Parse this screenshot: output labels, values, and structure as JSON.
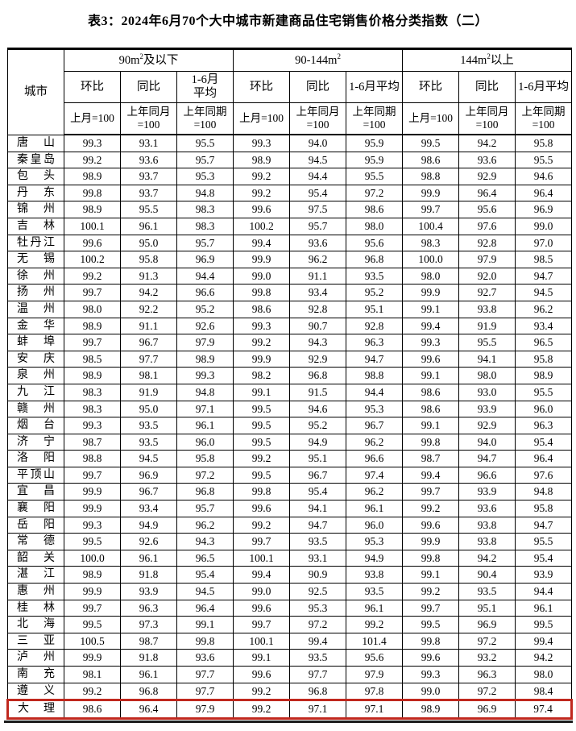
{
  "title": "表3：2024年6月70个大中城市新建商品住宅销售价格分类指数（二）",
  "colors": {
    "highlight_border": "#c0281e",
    "table_border": "#000000",
    "text": "#000000"
  },
  "table": {
    "city_label": "城市",
    "groups": [
      {
        "pre": "90m",
        "sup": "2",
        "post": "及以下",
        "cols": [
          "环比",
          "同比",
          "1-6月\n平均"
        ],
        "bases": [
          "上月=100",
          "上年同月\n=100",
          "上年同期\n=100"
        ]
      },
      {
        "pre": "90-144m",
        "sup": "2",
        "post": "",
        "cols": [
          "环比",
          "同比",
          "1-6月平均"
        ],
        "bases": [
          "上月=100",
          "上年同月\n=100",
          "上年同期\n=100"
        ]
      },
      {
        "pre": "144m",
        "sup": "2",
        "post": "以上",
        "cols": [
          "环比",
          "同比",
          "1-6月平均"
        ],
        "bases": [
          "上月=100",
          "上年同月\n=100",
          "上年同期\n=100"
        ]
      }
    ],
    "rows": [
      {
        "city": "唐山",
        "v": [
          "99.3",
          "93.1",
          "95.5",
          "99.3",
          "94.0",
          "95.9",
          "99.5",
          "94.2",
          "95.8"
        ]
      },
      {
        "city": "秦皇岛",
        "v": [
          "99.2",
          "93.6",
          "95.7",
          "98.9",
          "94.5",
          "95.9",
          "98.6",
          "93.6",
          "95.5"
        ]
      },
      {
        "city": "包头",
        "v": [
          "98.9",
          "93.7",
          "95.3",
          "99.2",
          "94.4",
          "95.5",
          "98.8",
          "92.9",
          "94.6"
        ]
      },
      {
        "city": "丹东",
        "v": [
          "99.8",
          "93.7",
          "94.8",
          "99.2",
          "95.4",
          "97.2",
          "99.9",
          "96.4",
          "96.4"
        ]
      },
      {
        "city": "锦州",
        "v": [
          "98.9",
          "95.5",
          "98.3",
          "99.6",
          "97.5",
          "98.6",
          "99.7",
          "95.6",
          "96.9"
        ]
      },
      {
        "city": "吉林",
        "v": [
          "100.1",
          "96.1",
          "98.3",
          "100.2",
          "95.7",
          "98.0",
          "100.4",
          "97.6",
          "99.0"
        ]
      },
      {
        "city": "牡丹江",
        "v": [
          "99.6",
          "95.0",
          "95.7",
          "99.4",
          "93.6",
          "95.6",
          "98.3",
          "92.8",
          "97.0"
        ]
      },
      {
        "city": "无锡",
        "v": [
          "100.2",
          "95.8",
          "96.9",
          "99.9",
          "96.2",
          "96.8",
          "100.0",
          "97.9",
          "98.5"
        ]
      },
      {
        "city": "徐州",
        "v": [
          "99.2",
          "91.3",
          "94.4",
          "99.0",
          "91.1",
          "93.5",
          "98.0",
          "92.0",
          "94.7"
        ]
      },
      {
        "city": "扬州",
        "v": [
          "99.7",
          "94.2",
          "96.6",
          "99.8",
          "93.4",
          "95.2",
          "99.9",
          "92.7",
          "94.5"
        ]
      },
      {
        "city": "温州",
        "v": [
          "98.0",
          "92.2",
          "95.2",
          "98.6",
          "92.8",
          "95.1",
          "99.1",
          "93.8",
          "96.2"
        ]
      },
      {
        "city": "金华",
        "v": [
          "98.9",
          "91.1",
          "92.6",
          "99.3",
          "90.7",
          "92.8",
          "99.4",
          "91.9",
          "93.4"
        ]
      },
      {
        "city": "蚌埠",
        "v": [
          "99.7",
          "96.7",
          "97.9",
          "99.2",
          "94.3",
          "96.3",
          "99.3",
          "95.5",
          "96.5"
        ]
      },
      {
        "city": "安庆",
        "v": [
          "98.5",
          "97.7",
          "98.9",
          "99.9",
          "92.9",
          "94.7",
          "99.6",
          "94.1",
          "95.8"
        ]
      },
      {
        "city": "泉州",
        "v": [
          "98.9",
          "98.1",
          "99.3",
          "98.2",
          "96.8",
          "98.8",
          "99.1",
          "98.0",
          "98.9"
        ]
      },
      {
        "city": "九江",
        "v": [
          "98.3",
          "91.9",
          "94.8",
          "99.1",
          "91.5",
          "94.4",
          "98.6",
          "93.0",
          "95.5"
        ]
      },
      {
        "city": "赣州",
        "v": [
          "98.3",
          "95.0",
          "97.1",
          "99.5",
          "94.6",
          "95.3",
          "98.6",
          "93.9",
          "96.0"
        ]
      },
      {
        "city": "烟台",
        "v": [
          "99.3",
          "93.5",
          "96.1",
          "99.5",
          "95.2",
          "96.7",
          "99.1",
          "92.9",
          "96.3"
        ]
      },
      {
        "city": "济宁",
        "v": [
          "98.7",
          "93.5",
          "96.0",
          "99.5",
          "94.9",
          "96.2",
          "99.8",
          "94.0",
          "95.4"
        ]
      },
      {
        "city": "洛阳",
        "v": [
          "98.8",
          "94.5",
          "95.8",
          "99.2",
          "95.1",
          "96.6",
          "98.7",
          "94.7",
          "96.4"
        ]
      },
      {
        "city": "平顶山",
        "v": [
          "99.7",
          "96.9",
          "97.2",
          "99.5",
          "96.7",
          "97.4",
          "99.4",
          "96.6",
          "97.6"
        ]
      },
      {
        "city": "宜昌",
        "v": [
          "99.9",
          "96.7",
          "96.8",
          "99.8",
          "95.4",
          "96.2",
          "99.7",
          "93.9",
          "94.8"
        ]
      },
      {
        "city": "襄阳",
        "v": [
          "99.9",
          "93.4",
          "95.7",
          "99.6",
          "94.1",
          "96.1",
          "99.2",
          "93.6",
          "95.8"
        ]
      },
      {
        "city": "岳阳",
        "v": [
          "99.3",
          "94.9",
          "96.2",
          "99.2",
          "94.7",
          "96.0",
          "99.6",
          "93.8",
          "94.7"
        ]
      },
      {
        "city": "常德",
        "v": [
          "99.5",
          "92.6",
          "94.3",
          "99.7",
          "93.5",
          "95.3",
          "99.9",
          "93.8",
          "95.5"
        ]
      },
      {
        "city": "韶关",
        "v": [
          "100.0",
          "96.1",
          "96.5",
          "100.1",
          "93.1",
          "94.9",
          "99.8",
          "94.2",
          "95.4"
        ]
      },
      {
        "city": "湛江",
        "v": [
          "98.9",
          "91.8",
          "95.4",
          "99.4",
          "90.9",
          "93.8",
          "99.1",
          "90.4",
          "93.9"
        ]
      },
      {
        "city": "惠州",
        "v": [
          "99.9",
          "93.9",
          "94.5",
          "99.0",
          "92.5",
          "93.5",
          "99.2",
          "93.5",
          "94.4"
        ]
      },
      {
        "city": "桂林",
        "v": [
          "99.7",
          "96.3",
          "96.4",
          "99.6",
          "95.3",
          "96.1",
          "99.7",
          "95.1",
          "96.1"
        ]
      },
      {
        "city": "北海",
        "v": [
          "99.5",
          "97.3",
          "99.1",
          "99.7",
          "97.2",
          "99.2",
          "99.5",
          "96.9",
          "99.5"
        ]
      },
      {
        "city": "三亚",
        "v": [
          "100.5",
          "98.7",
          "99.8",
          "100.1",
          "99.4",
          "101.4",
          "99.8",
          "97.2",
          "99.4"
        ]
      },
      {
        "city": "泸州",
        "v": [
          "99.9",
          "91.8",
          "93.6",
          "99.1",
          "93.5",
          "95.6",
          "99.6",
          "93.2",
          "94.2"
        ]
      },
      {
        "city": "南充",
        "v": [
          "98.1",
          "96.1",
          "97.7",
          "99.6",
          "97.7",
          "97.9",
          "99.3",
          "96.3",
          "98.0"
        ]
      },
      {
        "city": "遵义",
        "v": [
          "99.2",
          "96.8",
          "97.7",
          "99.2",
          "96.8",
          "97.8",
          "99.0",
          "97.2",
          "98.4"
        ]
      },
      {
        "city": "大理",
        "v": [
          "98.6",
          "96.4",
          "97.9",
          "99.2",
          "97.1",
          "97.1",
          "98.9",
          "96.9",
          "97.4"
        ],
        "highlight": true
      }
    ]
  }
}
